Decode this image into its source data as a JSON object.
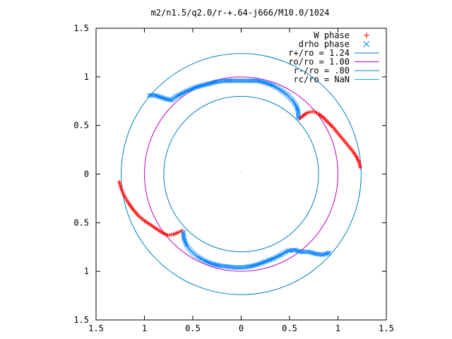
{
  "chart_data": {
    "type": "scatter",
    "title": "m2/n1.5/q2.0/r-+.64-j666/M10.0/1024",
    "xlabel": "",
    "ylabel": "",
    "xlim": [
      -1.5,
      1.5
    ],
    "ylim": [
      -1.5,
      1.5
    ],
    "x_ticks": [
      {
        "value": -1.5,
        "label": "1.5"
      },
      {
        "value": -1.0,
        "label": "1"
      },
      {
        "value": -0.5,
        "label": "0.5"
      },
      {
        "value": 0.0,
        "label": "0"
      },
      {
        "value": 0.5,
        "label": "0.5"
      },
      {
        "value": 1.0,
        "label": "1"
      },
      {
        "value": 1.5,
        "label": "1.5"
      }
    ],
    "y_ticks": [
      {
        "value": 1.5,
        "label": "1.5"
      },
      {
        "value": 1.0,
        "label": "1"
      },
      {
        "value": 0.5,
        "label": "0.5"
      },
      {
        "value": 0.0,
        "label": "0"
      },
      {
        "value": -0.5,
        "label": "0.5"
      },
      {
        "value": -1.0,
        "label": "1"
      },
      {
        "value": -1.5,
        "label": "1.5"
      }
    ],
    "grid": false,
    "legend_position": "top-right",
    "series": [
      {
        "name": "W phase",
        "marker": "plus",
        "color": "#ff0000",
        "points": [
          [
            0.6,
            0.57
          ],
          [
            0.64,
            0.6
          ],
          [
            0.68,
            0.63
          ],
          [
            0.72,
            0.64
          ],
          [
            0.76,
            0.64
          ],
          [
            0.8,
            0.62
          ],
          [
            0.85,
            0.58
          ],
          [
            0.9,
            0.53
          ],
          [
            0.95,
            0.48
          ],
          [
            1.0,
            0.42
          ],
          [
            1.05,
            0.36
          ],
          [
            1.1,
            0.3
          ],
          [
            1.15,
            0.24
          ],
          [
            1.19,
            0.18
          ],
          [
            1.22,
            0.12
          ],
          [
            1.23,
            0.07
          ],
          [
            -1.26,
            -0.08
          ],
          [
            -1.24,
            -0.15
          ],
          [
            -1.21,
            -0.22
          ],
          [
            -1.17,
            -0.29
          ],
          [
            -1.12,
            -0.36
          ],
          [
            -1.06,
            -0.43
          ],
          [
            -1.0,
            -0.48
          ],
          [
            -0.94,
            -0.52
          ],
          [
            -0.88,
            -0.56
          ],
          [
            -0.82,
            -0.6
          ],
          [
            -0.76,
            -0.63
          ],
          [
            -0.7,
            -0.62
          ],
          [
            -0.65,
            -0.6
          ],
          [
            -0.61,
            -0.58
          ]
        ]
      },
      {
        "name": "drho phase",
        "marker": "cross",
        "color": "#0080ff",
        "points": [
          [
            -0.95,
            0.81
          ],
          [
            -0.89,
            0.81
          ],
          [
            -0.83,
            0.79
          ],
          [
            -0.77,
            0.77
          ],
          [
            -0.72,
            0.76
          ],
          [
            -0.67,
            0.8
          ],
          [
            -0.61,
            0.83
          ],
          [
            -0.55,
            0.86
          ],
          [
            -0.48,
            0.89
          ],
          [
            -0.41,
            0.91
          ],
          [
            -0.33,
            0.93
          ],
          [
            -0.25,
            0.95
          ],
          [
            -0.17,
            0.96
          ],
          [
            -0.08,
            0.96
          ],
          [
            0.0,
            0.96
          ],
          [
            0.08,
            0.96
          ],
          [
            0.17,
            0.96
          ],
          [
            0.25,
            0.94
          ],
          [
            0.33,
            0.91
          ],
          [
            0.4,
            0.87
          ],
          [
            0.47,
            0.82
          ],
          [
            0.53,
            0.76
          ],
          [
            0.57,
            0.7
          ],
          [
            0.59,
            0.64
          ],
          [
            0.59,
            0.58
          ],
          [
            -0.6,
            -0.6
          ],
          [
            -0.59,
            -0.67
          ],
          [
            -0.56,
            -0.74
          ],
          [
            -0.51,
            -0.8
          ],
          [
            -0.45,
            -0.85
          ],
          [
            -0.38,
            -0.89
          ],
          [
            -0.31,
            -0.92
          ],
          [
            -0.23,
            -0.94
          ],
          [
            -0.15,
            -0.95
          ],
          [
            -0.07,
            -0.96
          ],
          [
            0.01,
            -0.96
          ],
          [
            0.09,
            -0.95
          ],
          [
            0.17,
            -0.93
          ],
          [
            0.25,
            -0.9
          ],
          [
            0.33,
            -0.87
          ],
          [
            0.41,
            -0.83
          ],
          [
            0.48,
            -0.79
          ],
          [
            0.55,
            -0.78
          ],
          [
            0.62,
            -0.8
          ],
          [
            0.7,
            -0.8
          ],
          [
            0.77,
            -0.82
          ],
          [
            0.84,
            -0.83
          ],
          [
            0.91,
            -0.81
          ]
        ]
      }
    ],
    "circles": [
      {
        "name": "r+/ro = 1.24",
        "radius": 1.24,
        "color": "#0080c0"
      },
      {
        "name": "ro/ro = 1.00",
        "radius": 1.0,
        "color": "#c000c0"
      },
      {
        "name": "r-/ro = .80",
        "radius": 0.8,
        "color": "#0080c0"
      },
      {
        "name": "rc/ro = NaN",
        "radius": null,
        "color": "#00c0c0"
      }
    ]
  }
}
